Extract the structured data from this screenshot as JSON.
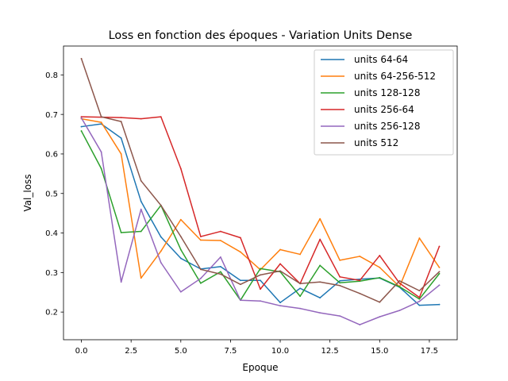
{
  "chart_data": {
    "type": "line",
    "title": "Loss en fonction des époques - Variation Units Dense",
    "xlabel": "Epoque",
    "ylabel": "Val_loss",
    "xlim": [
      -0.9,
      18.9
    ],
    "ylim": [
      0.13,
      0.873
    ],
    "xticks": [
      0,
      2.5,
      5,
      7.5,
      10,
      12.5,
      15,
      17.5
    ],
    "xtick_labels": [
      "0.0",
      "2.5",
      "5.0",
      "7.5",
      "10.0",
      "12.5",
      "15.0",
      "17.5"
    ],
    "yticks": [
      0.2,
      0.3,
      0.4,
      0.5,
      0.6,
      0.7,
      0.8
    ],
    "ytick_labels": [
      "0.2",
      "0.3",
      "0.4",
      "0.5",
      "0.6",
      "0.7",
      "0.8"
    ],
    "grid": false,
    "legend_position": "top-right",
    "x": [
      0,
      1,
      2,
      3,
      4,
      5,
      6,
      7,
      8,
      9,
      10,
      11,
      12,
      13,
      14,
      15,
      16,
      17,
      18
    ],
    "series": [
      {
        "name": "units 64-64",
        "color": "#1f77b4",
        "values": [
          0.669,
          0.676,
          0.64,
          0.48,
          0.39,
          0.336,
          0.309,
          0.315,
          0.28,
          0.28,
          0.224,
          0.26,
          0.236,
          0.279,
          0.283,
          0.286,
          0.263,
          0.217,
          0.219
        ]
      },
      {
        "name": "units 64-256-512",
        "color": "#ff7f0e",
        "values": [
          0.689,
          0.68,
          0.6,
          0.286,
          0.354,
          0.434,
          0.382,
          0.381,
          0.352,
          0.307,
          0.358,
          0.346,
          0.436,
          0.331,
          0.341,
          0.313,
          0.264,
          0.387,
          0.313
        ]
      },
      {
        "name": "units 128-128",
        "color": "#2ca02c",
        "values": [
          0.658,
          0.563,
          0.401,
          0.404,
          0.47,
          0.358,
          0.273,
          0.302,
          0.23,
          0.31,
          0.302,
          0.24,
          0.318,
          0.274,
          0.278,
          0.287,
          0.264,
          0.233,
          0.297
        ]
      },
      {
        "name": "units 256-64",
        "color": "#d62728",
        "values": [
          0.694,
          0.693,
          0.692,
          0.689,
          0.694,
          0.563,
          0.391,
          0.404,
          0.388,
          0.258,
          0.322,
          0.272,
          0.384,
          0.289,
          0.28,
          0.343,
          0.273,
          0.237,
          0.366
        ]
      },
      {
        "name": "units 256-128",
        "color": "#9467bd",
        "values": [
          0.691,
          0.605,
          0.276,
          0.46,
          0.325,
          0.251,
          0.285,
          0.339,
          0.23,
          0.228,
          0.216,
          0.209,
          0.198,
          0.19,
          0.168,
          0.188,
          0.204,
          0.227,
          0.268
        ]
      },
      {
        "name": "units 512",
        "color": "#8c564b",
        "values": [
          0.841,
          0.694,
          0.682,
          0.532,
          0.47,
          0.391,
          0.308,
          0.296,
          0.27,
          0.294,
          0.304,
          0.272,
          0.276,
          0.267,
          0.247,
          0.225,
          0.279,
          0.254,
          0.302
        ]
      }
    ]
  }
}
